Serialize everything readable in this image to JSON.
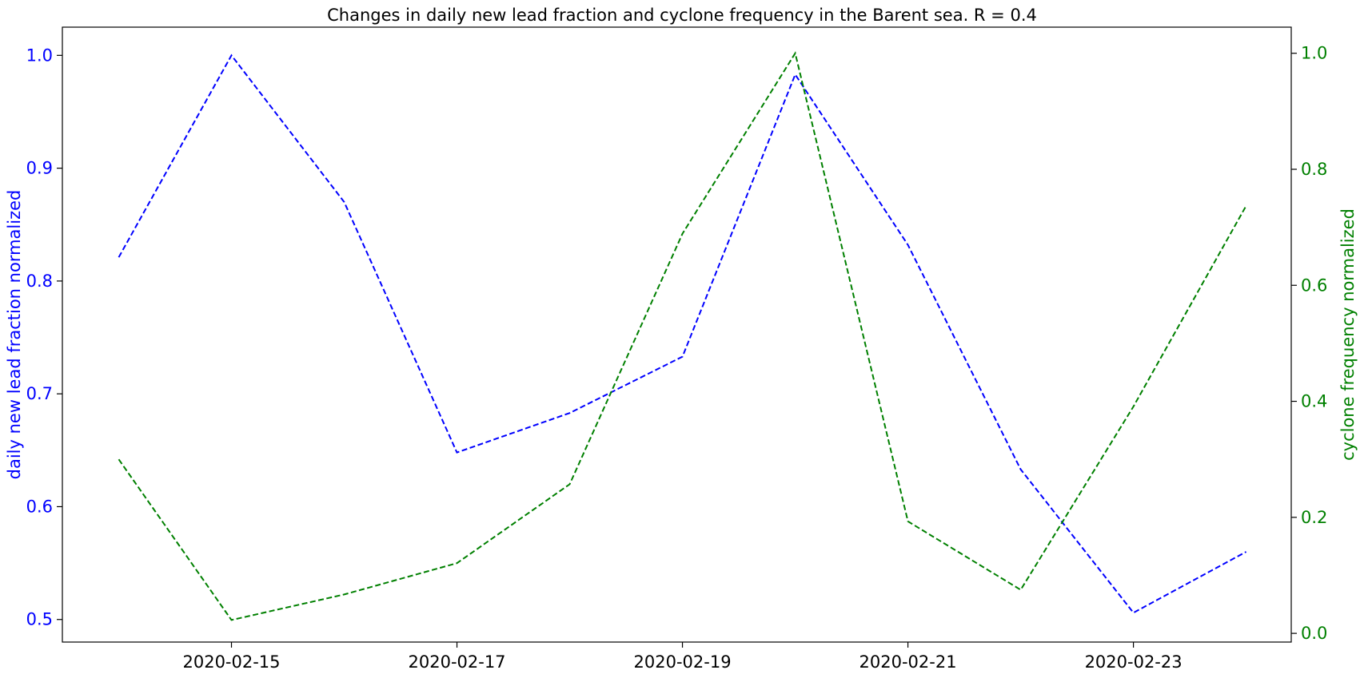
{
  "chart_data": {
    "type": "line",
    "title": "Changes in daily new lead fraction and cyclone frequency in the Barent sea. R = 0.4",
    "x": [
      "2020-02-14",
      "2020-02-15",
      "2020-02-16",
      "2020-02-17",
      "2020-02-18",
      "2020-02-19",
      "2020-02-20",
      "2020-02-21",
      "2020-02-22",
      "2020-02-23",
      "2020-02-24"
    ],
    "x_ticks": [
      "2020-02-15",
      "2020-02-17",
      "2020-02-19",
      "2020-02-21",
      "2020-02-23"
    ],
    "xlim": [
      "2020-02-13.5",
      "2020-02-24.4"
    ],
    "y_left": {
      "label": "daily new lead fraction normalized",
      "color": "#0000ff",
      "ylim": [
        0.48,
        1.025
      ],
      "ticks": [
        "0.5",
        "0.6",
        "0.7",
        "0.8",
        "0.9",
        "1.0"
      ],
      "values": [
        0.821,
        1.0,
        0.87,
        0.648,
        0.683,
        0.733,
        0.983,
        0.832,
        0.633,
        0.506,
        0.56
      ],
      "line_style": "dashed"
    },
    "y_right": {
      "label": "cyclone frequency normalized",
      "color": "#008000",
      "ylim": [
        -0.015,
        1.045
      ],
      "ticks": [
        "0.0",
        "0.2",
        "0.4",
        "0.6",
        "0.8",
        "1.0"
      ],
      "values": [
        0.3,
        0.023,
        0.067,
        0.121,
        0.257,
        0.689,
        1.0,
        0.193,
        0.075,
        0.391,
        0.737
      ],
      "line_style": "dashed"
    },
    "grid": false,
    "legend": "none"
  }
}
